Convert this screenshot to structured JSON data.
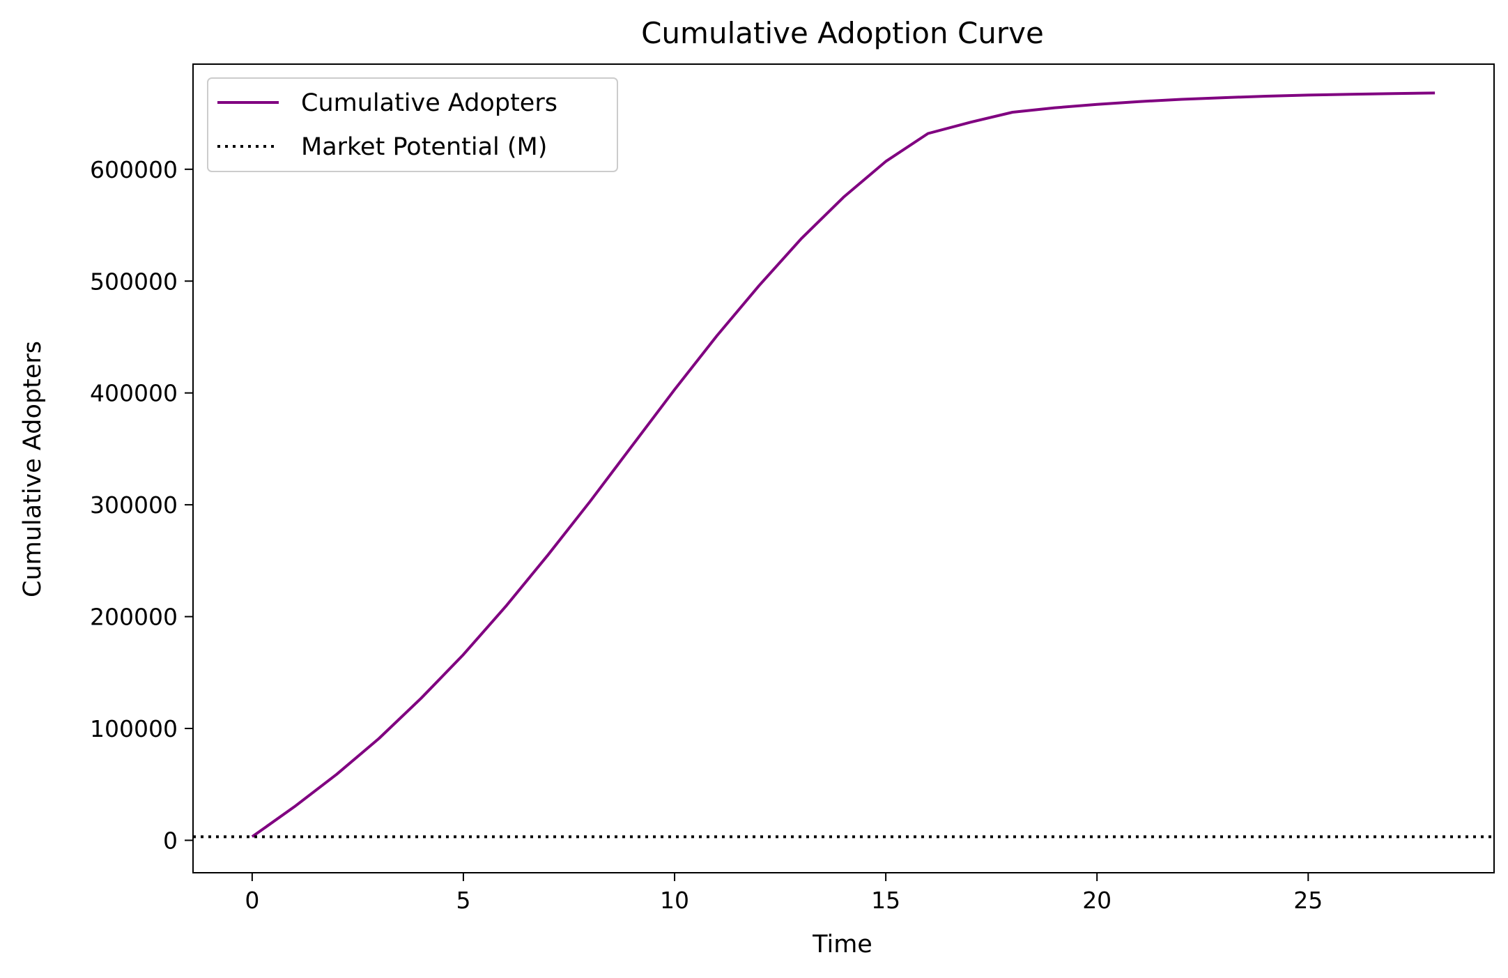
{
  "chart_data": {
    "type": "line",
    "title": "Cumulative Adoption Curve",
    "xlabel": "Time",
    "ylabel": "Cumulative Adopters",
    "xlim": [
      -1.4,
      29.4
    ],
    "ylim": [
      -29000,
      694000
    ],
    "xticks": [
      0,
      5,
      10,
      15,
      20,
      25
    ],
    "yticks": [
      0,
      100000,
      200000,
      300000,
      400000,
      500000,
      600000
    ],
    "legend_position": "upper left",
    "grid": false,
    "series": [
      {
        "name": "Cumulative Adopters",
        "style": "solid",
        "color": "#800080",
        "x": [
          0,
          1,
          2,
          3,
          4,
          5,
          6,
          7,
          8,
          9,
          10,
          11,
          12,
          13,
          14,
          15,
          16,
          17,
          18,
          19,
          20,
          21,
          22,
          23,
          24,
          25,
          26,
          27,
          28
        ],
        "y": [
          3200,
          30000,
          59000,
          91000,
          127000,
          166000,
          209000,
          255000,
          303000,
          353000,
          403000,
          451000,
          496000,
          538000,
          575000,
          607000,
          632000,
          642000,
          651000,
          655000,
          658000,
          660500,
          662500,
          664000,
          665300,
          666300,
          667100,
          667700,
          668200
        ]
      },
      {
        "name": "Market Potential (M)",
        "style": "dotted",
        "color": "#000000",
        "y_value": 3200
      }
    ]
  }
}
